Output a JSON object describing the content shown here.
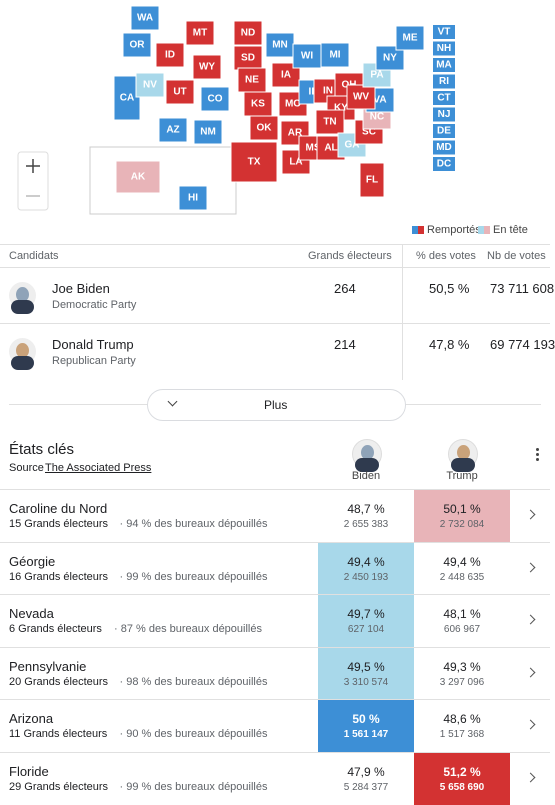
{
  "map": {
    "colors": {
      "dem-won": "#3d8fd6",
      "rep-won": "#d33232",
      "dem-lead": "#a8d8ea",
      "rep-lead": "#e8b4b8"
    },
    "states": [
      {
        "abbr": "WA",
        "status": "dem-won"
      },
      {
        "abbr": "OR",
        "status": "dem-won"
      },
      {
        "abbr": "CA",
        "status": "dem-won"
      },
      {
        "abbr": "NV",
        "status": "dem-lead"
      },
      {
        "abbr": "ID",
        "status": "rep-won"
      },
      {
        "abbr": "MT",
        "status": "rep-won"
      },
      {
        "abbr": "WY",
        "status": "rep-won"
      },
      {
        "abbr": "UT",
        "status": "rep-won"
      },
      {
        "abbr": "CO",
        "status": "dem-won"
      },
      {
        "abbr": "AZ",
        "status": "dem-won"
      },
      {
        "abbr": "NM",
        "status": "dem-won"
      },
      {
        "abbr": "ND",
        "status": "rep-won"
      },
      {
        "abbr": "SD",
        "status": "rep-won"
      },
      {
        "abbr": "NE",
        "status": "rep-won"
      },
      {
        "abbr": "KS",
        "status": "rep-won"
      },
      {
        "abbr": "OK",
        "status": "rep-won"
      },
      {
        "abbr": "TX",
        "status": "rep-won"
      },
      {
        "abbr": "MN",
        "status": "dem-won"
      },
      {
        "abbr": "IA",
        "status": "rep-won"
      },
      {
        "abbr": "MO",
        "status": "rep-won"
      },
      {
        "abbr": "AR",
        "status": "rep-won"
      },
      {
        "abbr": "LA",
        "status": "rep-won"
      },
      {
        "abbr": "WI",
        "status": "dem-won"
      },
      {
        "abbr": "IL",
        "status": "dem-won"
      },
      {
        "abbr": "MI",
        "status": "dem-won"
      },
      {
        "abbr": "IN",
        "status": "rep-won"
      },
      {
        "abbr": "OH",
        "status": "rep-won"
      },
      {
        "abbr": "KY",
        "status": "rep-won"
      },
      {
        "abbr": "TN",
        "status": "rep-won"
      },
      {
        "abbr": "MS",
        "status": "rep-won"
      },
      {
        "abbr": "AL",
        "status": "rep-won"
      },
      {
        "abbr": "GA",
        "status": "dem-lead"
      },
      {
        "abbr": "FL",
        "status": "rep-won"
      },
      {
        "abbr": "SC",
        "status": "rep-won"
      },
      {
        "abbr": "NC",
        "status": "rep-lead"
      },
      {
        "abbr": "VA",
        "status": "dem-won"
      },
      {
        "abbr": "WV",
        "status": "rep-won"
      },
      {
        "abbr": "PA",
        "status": "dem-lead"
      },
      {
        "abbr": "NY",
        "status": "dem-won"
      },
      {
        "abbr": "ME",
        "status": "dem-won"
      },
      {
        "abbr": "AK",
        "status": "rep-lead"
      },
      {
        "abbr": "HI",
        "status": "dem-won"
      },
      {
        "abbr": "VT",
        "status": "dem-won"
      },
      {
        "abbr": "NH",
        "status": "dem-won"
      },
      {
        "abbr": "MA",
        "status": "dem-won"
      },
      {
        "abbr": "RI",
        "status": "dem-won"
      },
      {
        "abbr": "CT",
        "status": "dem-won"
      },
      {
        "abbr": "NJ",
        "status": "dem-won"
      },
      {
        "abbr": "DE",
        "status": "dem-won"
      },
      {
        "abbr": "MD",
        "status": "dem-won"
      },
      {
        "abbr": "DC",
        "status": "dem-won"
      }
    ],
    "legend": {
      "won": "Remportés",
      "lead": "En tête"
    }
  },
  "candidates": {
    "headers": [
      "Candidats",
      "Grands électeurs",
      "% des votes",
      "Nb de votes"
    ],
    "rows": [
      {
        "name": "Joe Biden",
        "party": "Democratic Party",
        "electors": "264",
        "pct": "50,5 %",
        "votes": "73 711 608",
        "avatar": "#8fa3b8"
      },
      {
        "name": "Donald Trump",
        "party": "Republican Party",
        "electors": "214",
        "pct": "47,8 %",
        "votes": "69 774 193",
        "avatar": "#c9a27a"
      }
    ],
    "more": "Plus"
  },
  "key_states": {
    "title": "États clés",
    "source_label": "Source",
    "source": "The Associated Press",
    "columns": [
      "Biden",
      "Trump"
    ],
    "rows": [
      {
        "state": "Caroline du Nord",
        "electors": "15 Grands électeurs",
        "reporting": "· 94 % des bureaux dépouillés",
        "biden_pct": "48,7 %",
        "biden_votes": "2 655 383",
        "trump_pct": "50,1 %",
        "trump_votes": "2 732 084",
        "highlight": "rep-lead"
      },
      {
        "state": "Géorgie",
        "electors": "16 Grands électeurs",
        "reporting": "· 99 % des bureaux dépouillés",
        "biden_pct": "49,4 %",
        "biden_votes": "2 450 193",
        "trump_pct": "49,4 %",
        "trump_votes": "2 448 635",
        "highlight": "dem-lead"
      },
      {
        "state": "Nevada",
        "electors": "6 Grands électeurs",
        "reporting": "· 87 % des bureaux dépouillés",
        "biden_pct": "49,7 %",
        "biden_votes": "627 104",
        "trump_pct": "48,1 %",
        "trump_votes": "606 967",
        "highlight": "dem-lead"
      },
      {
        "state": "Pennsylvanie",
        "electors": "20 Grands électeurs",
        "reporting": "· 98 % des bureaux dépouillés",
        "biden_pct": "49,5 %",
        "biden_votes": "3 310 574",
        "trump_pct": "49,3 %",
        "trump_votes": "3 297 096",
        "highlight": "dem-lead"
      },
      {
        "state": "Arizona",
        "electors": "11 Grands électeurs",
        "reporting": "· 90 % des bureaux dépouillés",
        "biden_pct": "50 %",
        "biden_votes": "1 561 147",
        "trump_pct": "48,6 %",
        "trump_votes": "1 517 368",
        "highlight": "dem-won"
      },
      {
        "state": "Floride",
        "electors": "29 Grands électeurs",
        "reporting": "· 99 % des bureaux dépouillés",
        "biden_pct": "47,9 %",
        "biden_votes": "5 284 377",
        "trump_pct": "51,2 %",
        "trump_votes": "5 658 690",
        "highlight": "rep-won"
      }
    ]
  }
}
